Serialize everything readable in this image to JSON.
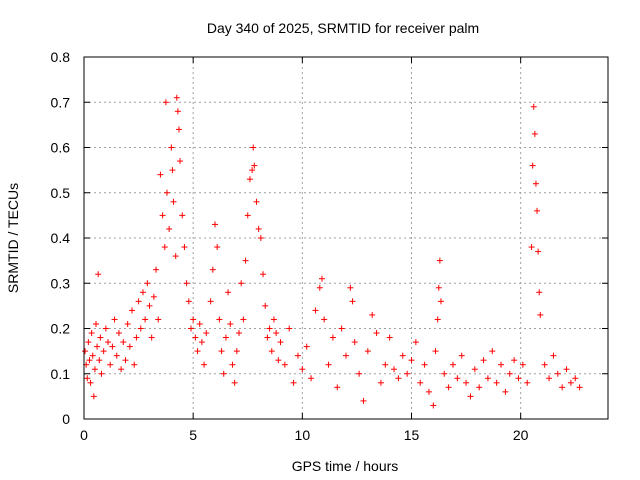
{
  "chart_data": {
    "type": "scatter",
    "title": "Day 340 of 2025, SRMTID for receiver palm",
    "xlabel": "GPS time / hours",
    "ylabel": "SRMTID / TECUs",
    "xlim": [
      0,
      24
    ],
    "ylim": [
      0,
      0.8
    ],
    "xticks": [
      0,
      5,
      10,
      15,
      20
    ],
    "yticks": [
      0,
      0.1,
      0.2,
      0.3,
      0.4,
      0.5,
      0.6,
      0.7,
      0.8
    ],
    "xtick_labels": [
      "0",
      "5",
      "10",
      "15",
      "20"
    ],
    "ytick_labels": [
      "0",
      "0.1",
      "0.2",
      "0.3",
      "0.4",
      "0.5",
      "0.6",
      "0.7",
      "0.8"
    ],
    "grid": true,
    "marker": "+",
    "series_color": "#ff0000",
    "points": [
      [
        0.05,
        0.15
      ],
      [
        0.1,
        0.12
      ],
      [
        0.15,
        0.09
      ],
      [
        0.2,
        0.17
      ],
      [
        0.25,
        0.13
      ],
      [
        0.3,
        0.08
      ],
      [
        0.35,
        0.19
      ],
      [
        0.4,
        0.14
      ],
      [
        0.45,
        0.05
      ],
      [
        0.5,
        0.11
      ],
      [
        0.55,
        0.21
      ],
      [
        0.6,
        0.16
      ],
      [
        0.65,
        0.32
      ],
      [
        0.7,
        0.13
      ],
      [
        0.75,
        0.18
      ],
      [
        0.8,
        0.1
      ],
      [
        0.9,
        0.15
      ],
      [
        1.0,
        0.2
      ],
      [
        1.1,
        0.17
      ],
      [
        1.2,
        0.12
      ],
      [
        1.3,
        0.16
      ],
      [
        1.4,
        0.22
      ],
      [
        1.5,
        0.14
      ],
      [
        1.6,
        0.19
      ],
      [
        1.7,
        0.11
      ],
      [
        1.8,
        0.17
      ],
      [
        1.9,
        0.13
      ],
      [
        2.0,
        0.21
      ],
      [
        2.1,
        0.16
      ],
      [
        2.2,
        0.24
      ],
      [
        2.3,
        0.12
      ],
      [
        2.4,
        0.18
      ],
      [
        2.5,
        0.26
      ],
      [
        2.6,
        0.2
      ],
      [
        2.7,
        0.28
      ],
      [
        2.8,
        0.22
      ],
      [
        2.9,
        0.3
      ],
      [
        3.0,
        0.25
      ],
      [
        3.1,
        0.18
      ],
      [
        3.2,
        0.27
      ],
      [
        3.3,
        0.33
      ],
      [
        3.4,
        0.22
      ],
      [
        3.5,
        0.54
      ],
      [
        3.6,
        0.45
      ],
      [
        3.7,
        0.38
      ],
      [
        3.75,
        0.7
      ],
      [
        3.8,
        0.5
      ],
      [
        3.9,
        0.42
      ],
      [
        4.0,
        0.6
      ],
      [
        4.05,
        0.55
      ],
      [
        4.1,
        0.48
      ],
      [
        4.2,
        0.36
      ],
      [
        4.25,
        0.71
      ],
      [
        4.3,
        0.68
      ],
      [
        4.35,
        0.64
      ],
      [
        4.4,
        0.57
      ],
      [
        4.5,
        0.45
      ],
      [
        4.6,
        0.38
      ],
      [
        4.7,
        0.3
      ],
      [
        4.8,
        0.26
      ],
      [
        4.9,
        0.2
      ],
      [
        5.0,
        0.22
      ],
      [
        5.1,
        0.18
      ],
      [
        5.2,
        0.15
      ],
      [
        5.3,
        0.21
      ],
      [
        5.4,
        0.17
      ],
      [
        5.5,
        0.12
      ],
      [
        5.6,
        0.19
      ],
      [
        5.8,
        0.26
      ],
      [
        5.9,
        0.33
      ],
      [
        6.0,
        0.43
      ],
      [
        6.1,
        0.38
      ],
      [
        6.2,
        0.22
      ],
      [
        6.3,
        0.15
      ],
      [
        6.4,
        0.1
      ],
      [
        6.5,
        0.18
      ],
      [
        6.6,
        0.28
      ],
      [
        6.7,
        0.21
      ],
      [
        6.8,
        0.12
      ],
      [
        6.9,
        0.08
      ],
      [
        7.0,
        0.15
      ],
      [
        7.1,
        0.19
      ],
      [
        7.2,
        0.3
      ],
      [
        7.3,
        0.22
      ],
      [
        7.4,
        0.35
      ],
      [
        7.5,
        0.45
      ],
      [
        7.6,
        0.53
      ],
      [
        7.7,
        0.55
      ],
      [
        7.75,
        0.6
      ],
      [
        7.8,
        0.56
      ],
      [
        7.9,
        0.48
      ],
      [
        8.0,
        0.42
      ],
      [
        8.1,
        0.4
      ],
      [
        8.2,
        0.32
      ],
      [
        8.3,
        0.25
      ],
      [
        8.4,
        0.18
      ],
      [
        8.5,
        0.2
      ],
      [
        8.6,
        0.15
      ],
      [
        8.7,
        0.22
      ],
      [
        8.8,
        0.19
      ],
      [
        8.9,
        0.13
      ],
      [
        9.0,
        0.17
      ],
      [
        9.2,
        0.12
      ],
      [
        9.4,
        0.2
      ],
      [
        9.6,
        0.08
      ],
      [
        9.8,
        0.14
      ],
      [
        10.0,
        0.11
      ],
      [
        10.2,
        0.16
      ],
      [
        10.4,
        0.09
      ],
      [
        10.6,
        0.24
      ],
      [
        10.8,
        0.29
      ],
      [
        10.9,
        0.31
      ],
      [
        11.0,
        0.22
      ],
      [
        11.2,
        0.12
      ],
      [
        11.4,
        0.18
      ],
      [
        11.6,
        0.07
      ],
      [
        11.8,
        0.2
      ],
      [
        12.0,
        0.14
      ],
      [
        12.2,
        0.29
      ],
      [
        12.3,
        0.26
      ],
      [
        12.4,
        0.17
      ],
      [
        12.6,
        0.1
      ],
      [
        12.8,
        0.04
      ],
      [
        13.0,
        0.15
      ],
      [
        13.2,
        0.23
      ],
      [
        13.4,
        0.19
      ],
      [
        13.6,
        0.08
      ],
      [
        13.8,
        0.12
      ],
      [
        14.0,
        0.18
      ],
      [
        14.2,
        0.11
      ],
      [
        14.4,
        0.09
      ],
      [
        14.6,
        0.14
      ],
      [
        14.8,
        0.1
      ],
      [
        15.0,
        0.13
      ],
      [
        15.2,
        0.17
      ],
      [
        15.4,
        0.08
      ],
      [
        15.6,
        0.12
      ],
      [
        15.8,
        0.06
      ],
      [
        16.0,
        0.03
      ],
      [
        16.1,
        0.15
      ],
      [
        16.2,
        0.22
      ],
      [
        16.25,
        0.29
      ],
      [
        16.3,
        0.35
      ],
      [
        16.35,
        0.26
      ],
      [
        16.5,
        0.1
      ],
      [
        16.7,
        0.07
      ],
      [
        16.9,
        0.12
      ],
      [
        17.1,
        0.09
      ],
      [
        17.3,
        0.14
      ],
      [
        17.5,
        0.08
      ],
      [
        17.7,
        0.05
      ],
      [
        17.9,
        0.11
      ],
      [
        18.1,
        0.07
      ],
      [
        18.3,
        0.13
      ],
      [
        18.5,
        0.09
      ],
      [
        18.7,
        0.15
      ],
      [
        18.9,
        0.08
      ],
      [
        19.1,
        0.12
      ],
      [
        19.3,
        0.06
      ],
      [
        19.5,
        0.1
      ],
      [
        19.7,
        0.13
      ],
      [
        19.9,
        0.09
      ],
      [
        20.1,
        0.12
      ],
      [
        20.3,
        0.08
      ],
      [
        20.5,
        0.38
      ],
      [
        20.55,
        0.56
      ],
      [
        20.6,
        0.69
      ],
      [
        20.65,
        0.63
      ],
      [
        20.7,
        0.52
      ],
      [
        20.75,
        0.46
      ],
      [
        20.8,
        0.37
      ],
      [
        20.85,
        0.28
      ],
      [
        20.9,
        0.23
      ],
      [
        21.1,
        0.12
      ],
      [
        21.3,
        0.09
      ],
      [
        21.5,
        0.14
      ],
      [
        21.7,
        0.1
      ],
      [
        21.9,
        0.07
      ],
      [
        22.1,
        0.11
      ],
      [
        22.3,
        0.08
      ],
      [
        22.5,
        0.09
      ],
      [
        22.7,
        0.07
      ]
    ]
  }
}
